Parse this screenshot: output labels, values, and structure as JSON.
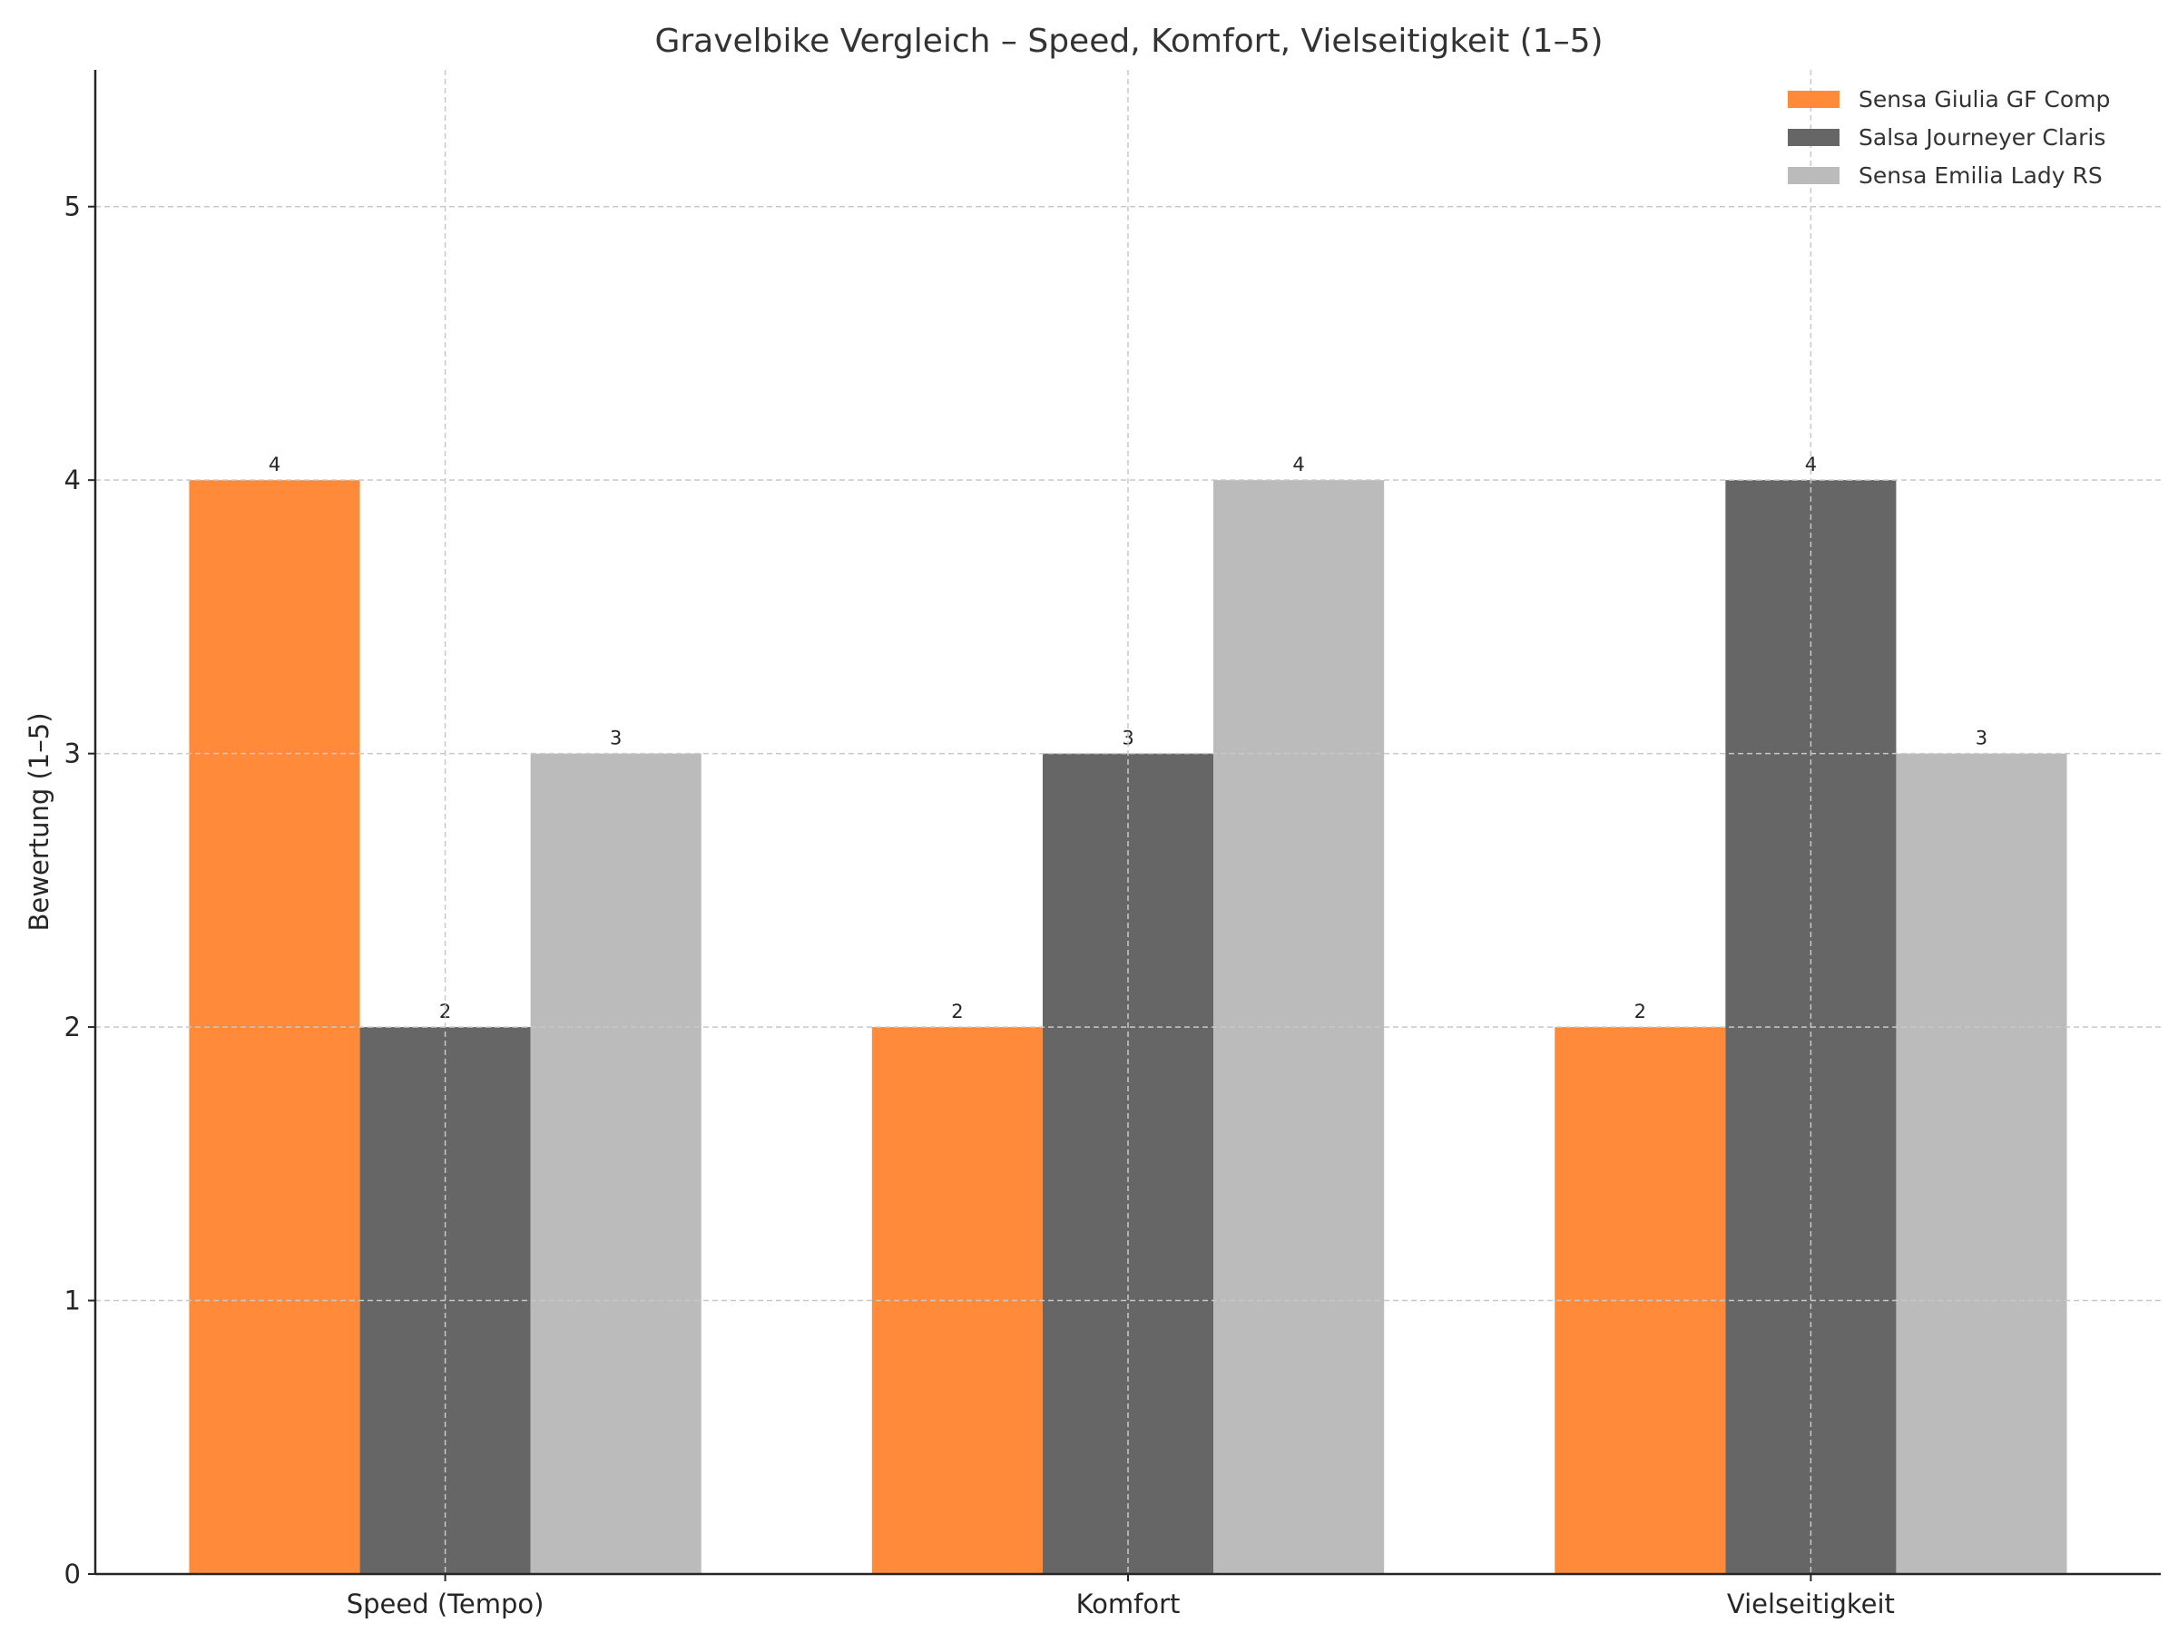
{
  "chart_data": {
    "type": "bar",
    "title": "Gravelbike Vergleich – Speed, Komfort, Vielseitigkeit (1–5)",
    "xlabel": "",
    "ylabel": "Bewertung (1–5)",
    "categories": [
      "Speed (Tempo)",
      "Komfort",
      "Vielseitigkeit"
    ],
    "series": [
      {
        "name": "Sensa Giulia GF Comp",
        "values": [
          4,
          2,
          2
        ],
        "color": "#ff8a3a"
      },
      {
        "name": "Salsa Journeyer Claris",
        "values": [
          2,
          3,
          4
        ],
        "color": "#666666"
      },
      {
        "name": "Sensa Emilia Lady RS",
        "values": [
          3,
          4,
          3
        ],
        "color": "#bbbbbb"
      }
    ],
    "ylim": [
      0,
      5.5
    ],
    "yticks": [
      0,
      1,
      2,
      3,
      4,
      5
    ],
    "grid": true,
    "legend": "top-right",
    "data_labels": true
  }
}
